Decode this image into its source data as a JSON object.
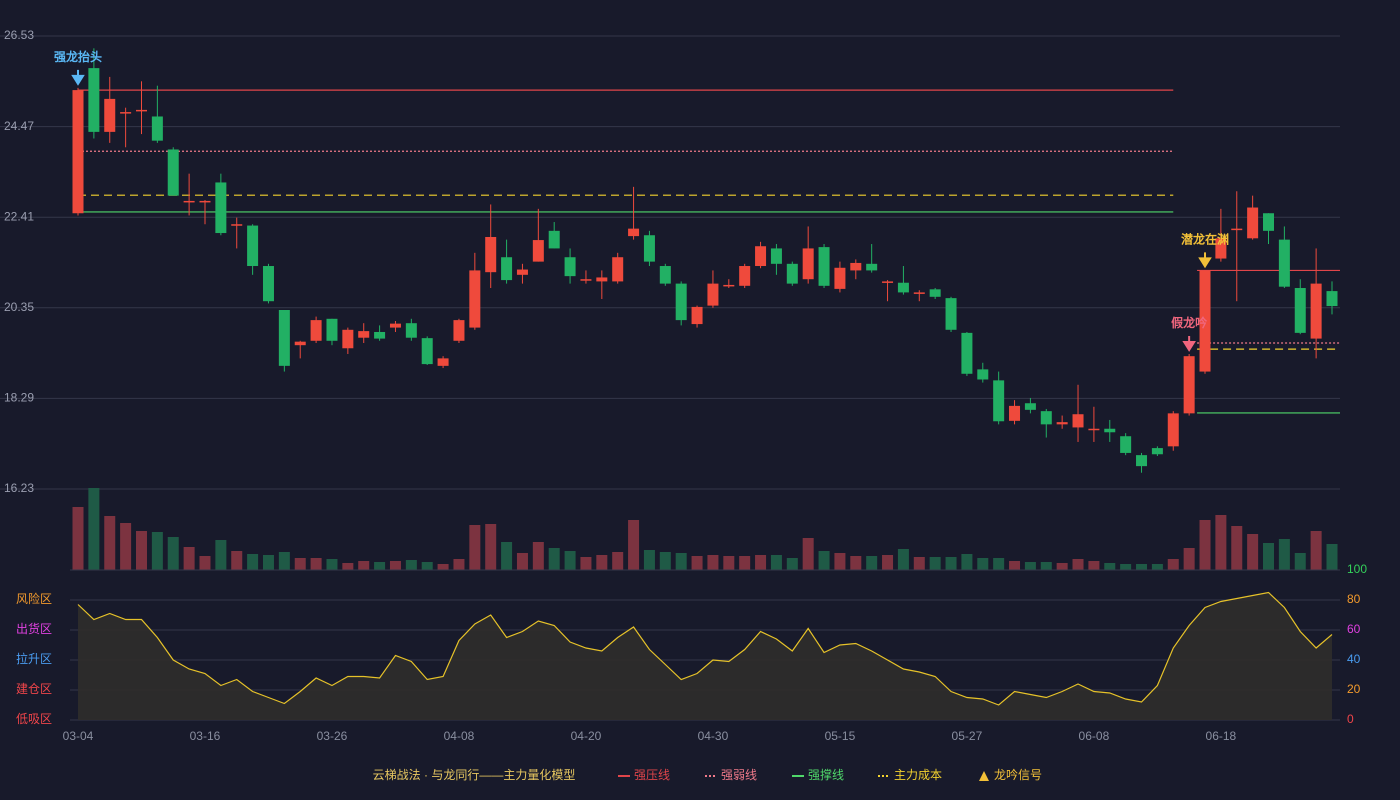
{
  "chart_data": [
    {
      "type": "candlestick",
      "categories": [
        "03-04",
        null,
        null,
        null,
        null,
        null,
        null,
        null,
        "03-16",
        null,
        null,
        null,
        null,
        null,
        null,
        null,
        "03-26",
        null,
        null,
        null,
        null,
        null,
        null,
        null,
        "04-08",
        null,
        null,
        null,
        null,
        null,
        null,
        null,
        "04-20",
        null,
        null,
        null,
        null,
        null,
        null,
        null,
        "04-30",
        null,
        null,
        null,
        null,
        null,
        null,
        null,
        "05-15",
        null,
        null,
        null,
        null,
        null,
        null,
        null,
        "05-27",
        null,
        null,
        null,
        null,
        null,
        null,
        null,
        "06-08",
        null,
        null,
        null,
        null,
        null,
        null,
        null,
        "06-18",
        null,
        null,
        null,
        null,
        null,
        null,
        null
      ],
      "open": [
        22.5,
        25.8,
        24.35,
        24.8,
        24.85,
        24.7,
        23.95,
        22.78,
        22.78,
        23.2,
        22.25,
        22.22,
        21.3,
        20.3,
        19.5,
        19.6,
        20.1,
        19.43,
        19.67,
        19.8,
        19.9,
        20.0,
        19.66,
        19.03,
        19.6,
        19.9,
        21.16,
        21.5,
        21.1,
        21.4,
        22.1,
        21.5,
        21.0,
        20.95,
        20.95,
        21.98,
        22.0,
        21.3,
        20.9,
        19.98,
        20.4,
        20.87,
        20.85,
        21.3,
        21.7,
        21.35,
        21.0,
        21.73,
        20.78,
        21.2,
        21.35,
        20.95,
        20.92,
        20.7,
        20.77,
        20.57,
        19.78,
        18.95,
        18.7,
        17.78,
        18.18,
        18.0,
        17.7,
        17.63,
        17.6,
        17.6,
        17.43,
        17.0,
        17.16,
        17.2,
        17.95,
        18.9,
        21.47,
        22.15,
        21.93,
        22.5,
        21.9,
        20.8,
        19.65,
        20.73
      ],
      "high": [
        25.35,
        26.25,
        25.6,
        24.9,
        25.5,
        25.4,
        24.0,
        23.4,
        22.8,
        23.4,
        22.4,
        22.25,
        21.35,
        20.3,
        19.6,
        20.15,
        20.1,
        19.9,
        20.0,
        19.95,
        20.05,
        20.1,
        19.7,
        19.25,
        20.1,
        21.6,
        22.7,
        21.9,
        21.35,
        22.6,
        22.3,
        21.7,
        21.2,
        21.2,
        21.6,
        23.1,
        22.1,
        21.35,
        20.95,
        20.4,
        21.2,
        21.0,
        21.35,
        21.85,
        21.8,
        21.4,
        22.2,
        21.8,
        21.4,
        21.45,
        21.8,
        20.98,
        21.3,
        20.75,
        20.8,
        20.6,
        19.8,
        19.1,
        18.9,
        18.25,
        18.3,
        18.05,
        17.9,
        18.6,
        18.1,
        17.8,
        17.5,
        17.05,
        17.2,
        18.0,
        19.3,
        21.2,
        22.6,
        23.0,
        22.9,
        22.5,
        22.2,
        21.0,
        21.7,
        20.95
      ],
      "low": [
        22.45,
        24.2,
        24.1,
        24.0,
        24.3,
        24.1,
        22.9,
        22.45,
        22.25,
        22.0,
        21.7,
        21.1,
        20.45,
        18.9,
        19.2,
        19.55,
        19.5,
        19.3,
        19.55,
        19.6,
        19.8,
        19.6,
        19.05,
        18.98,
        19.55,
        19.85,
        20.8,
        20.9,
        20.9,
        21.4,
        21.7,
        20.9,
        20.9,
        20.55,
        20.9,
        21.9,
        21.3,
        20.85,
        19.95,
        19.9,
        20.35,
        20.8,
        20.8,
        21.25,
        21.1,
        20.85,
        20.9,
        20.8,
        20.7,
        21.0,
        21.15,
        20.5,
        20.65,
        20.5,
        20.55,
        19.8,
        18.8,
        18.65,
        17.7,
        17.7,
        17.95,
        17.4,
        17.6,
        17.3,
        17.3,
        17.3,
        17.0,
        16.6,
        16.98,
        17.1,
        17.9,
        18.85,
        21.4,
        20.5,
        21.9,
        21.8,
        20.8,
        19.75,
        19.2,
        20.2
      ],
      "close": [
        25.3,
        24.35,
        25.1,
        24.8,
        24.85,
        24.15,
        22.9,
        22.78,
        22.78,
        22.05,
        22.25,
        21.3,
        20.5,
        19.03,
        19.58,
        20.07,
        19.6,
        19.85,
        19.82,
        19.65,
        19.99,
        19.67,
        19.07,
        19.2,
        20.07,
        21.2,
        21.96,
        20.98,
        21.22,
        21.89,
        21.7,
        21.07,
        21.0,
        21.04,
        21.5,
        22.15,
        21.4,
        20.9,
        20.07,
        20.37,
        20.9,
        20.87,
        21.3,
        21.75,
        21.35,
        20.9,
        21.7,
        20.85,
        21.26,
        21.37,
        21.2,
        20.95,
        20.7,
        20.7,
        20.6,
        19.85,
        18.85,
        18.72,
        17.77,
        18.12,
        18.03,
        17.7,
        17.75,
        17.93,
        17.6,
        17.52,
        17.05,
        16.75,
        17.02,
        17.95,
        19.25,
        21.2,
        21.93,
        22.15,
        22.63,
        22.1,
        20.83,
        19.78,
        20.9,
        20.39
      ],
      "up_color": "#ef4a3c",
      "down_color": "#22b064",
      "ylim": [
        16.23,
        26.53
      ],
      "yticks": [
        16.23,
        18.29,
        20.35,
        22.41,
        24.47,
        26.53
      ],
      "grid": true,
      "legend_title": "云梯战法 · 与龙同行——主力量化模型",
      "series": [
        {
          "name": "强压线",
          "color": "#e0454a",
          "style": "solid",
          "values": [
            25.3,
            25.3,
            25.3,
            25.3,
            25.3,
            25.3,
            25.3,
            25.3,
            25.3,
            25.3,
            25.3,
            25.3,
            25.3,
            25.3,
            25.3,
            25.3,
            25.3,
            25.3,
            25.3,
            25.3,
            25.3,
            25.3,
            25.3,
            25.3,
            25.3,
            25.3,
            25.3,
            25.3,
            25.3,
            25.3,
            25.3,
            25.3,
            25.3,
            25.3,
            25.3,
            25.3,
            25.3,
            25.3,
            25.3,
            25.3,
            25.3,
            25.3,
            25.3,
            25.3,
            25.3,
            25.3,
            25.3,
            25.3,
            25.3,
            25.3,
            25.3,
            25.3,
            25.3,
            25.3,
            25.3,
            25.3,
            25.3,
            25.3,
            25.3,
            25.3,
            25.3,
            25.3,
            25.3,
            25.3,
            25.3,
            25.3,
            25.3,
            25.3,
            25.3,
            25.3,
            null,
            21.2,
            21.2,
            21.2,
            21.2,
            21.2,
            21.2,
            21.2,
            21.2,
            21.2
          ]
        },
        {
          "name": "强弱线",
          "color": "#f07a8a",
          "style": "dotted",
          "values": [
            23.91,
            23.91,
            23.91,
            23.91,
            23.91,
            23.91,
            23.91,
            23.91,
            23.91,
            23.91,
            23.91,
            23.91,
            23.91,
            23.91,
            23.91,
            23.91,
            23.91,
            23.91,
            23.91,
            23.91,
            23.91,
            23.91,
            23.91,
            23.91,
            23.91,
            23.91,
            23.91,
            23.91,
            23.91,
            23.91,
            23.91,
            23.91,
            23.91,
            23.91,
            23.91,
            23.91,
            23.91,
            23.91,
            23.91,
            23.91,
            23.91,
            23.91,
            23.91,
            23.91,
            23.91,
            23.91,
            23.91,
            23.91,
            23.91,
            23.91,
            23.91,
            23.91,
            23.91,
            23.91,
            23.91,
            23.91,
            23.91,
            23.91,
            23.91,
            23.91,
            23.91,
            23.91,
            23.91,
            23.91,
            23.91,
            23.91,
            23.91,
            23.91,
            23.91,
            23.91,
            null,
            19.55,
            19.55,
            19.55,
            19.55,
            19.55,
            19.55,
            19.55,
            19.55,
            19.55
          ]
        },
        {
          "name": "强撑线",
          "color": "#4fd86a",
          "style": "solid",
          "values": [
            22.53,
            22.53,
            22.53,
            22.53,
            22.53,
            22.53,
            22.53,
            22.53,
            22.53,
            22.53,
            22.53,
            22.53,
            22.53,
            22.53,
            22.53,
            22.53,
            22.53,
            22.53,
            22.53,
            22.53,
            22.53,
            22.53,
            22.53,
            22.53,
            22.53,
            22.53,
            22.53,
            22.53,
            22.53,
            22.53,
            22.53,
            22.53,
            22.53,
            22.53,
            22.53,
            22.53,
            22.53,
            22.53,
            22.53,
            22.53,
            22.53,
            22.53,
            22.53,
            22.53,
            22.53,
            22.53,
            22.53,
            22.53,
            22.53,
            22.53,
            22.53,
            22.53,
            22.53,
            22.53,
            22.53,
            22.53,
            22.53,
            22.53,
            22.53,
            22.53,
            22.53,
            22.53,
            22.53,
            22.53,
            22.53,
            22.53,
            22.53,
            22.53,
            22.53,
            22.53,
            null,
            17.96,
            17.96,
            17.96,
            17.96,
            17.96,
            17.96,
            17.96,
            17.96,
            17.96
          ]
        },
        {
          "name": "主力成本",
          "color": "#f2d12e",
          "style": "dashed",
          "values": [
            22.91,
            22.91,
            22.91,
            22.91,
            22.91,
            22.91,
            22.91,
            22.91,
            22.91,
            22.91,
            22.91,
            22.91,
            22.91,
            22.91,
            22.91,
            22.91,
            22.91,
            22.91,
            22.91,
            22.91,
            22.91,
            22.91,
            22.91,
            22.91,
            22.91,
            22.91,
            22.91,
            22.91,
            22.91,
            22.91,
            22.91,
            22.91,
            22.91,
            22.91,
            22.91,
            22.91,
            22.91,
            22.91,
            22.91,
            22.91,
            22.91,
            22.91,
            22.91,
            22.91,
            22.91,
            22.91,
            22.91,
            22.91,
            22.91,
            22.91,
            22.91,
            22.91,
            22.91,
            22.91,
            22.91,
            22.91,
            22.91,
            22.91,
            22.91,
            22.91,
            22.91,
            22.91,
            22.91,
            22.91,
            22.91,
            22.91,
            22.91,
            22.91,
            22.91,
            22.91,
            null,
            19.41,
            19.41,
            19.41,
            19.41,
            19.41,
            19.41,
            19.41,
            19.41,
            19.41
          ]
        }
      ],
      "signal_name": "龙吟信号",
      "signal_color": "#f2c038",
      "annotations": [
        {
          "text": "强龙抬头",
          "candle": 0,
          "color": "#5ab8f5"
        },
        {
          "text": "假龙吟",
          "candle": 70,
          "color": "#f0667e"
        },
        {
          "text": "潜龙在渊",
          "candle": 71,
          "color": "#f2c038"
        }
      ]
    },
    {
      "type": "bar",
      "values": [
        63,
        82,
        54,
        47,
        39,
        38,
        33,
        23,
        14,
        30,
        19,
        16,
        15,
        18,
        12,
        12,
        11,
        7,
        9,
        8,
        9,
        10,
        8,
        6,
        11,
        45,
        46,
        28,
        17,
        28,
        22,
        19,
        13,
        15,
        18,
        50,
        20,
        18,
        17,
        14,
        15,
        14,
        14,
        15,
        15,
        12,
        32,
        19,
        17,
        14,
        14,
        15,
        21,
        13,
        13,
        13,
        16,
        12,
        12,
        9,
        8,
        8,
        7,
        11,
        9,
        7,
        6,
        6,
        6,
        11,
        22,
        50,
        55,
        44,
        36,
        27,
        31,
        17,
        39,
        26
      ],
      "up_color": "#7c3340",
      "down_color": "#1f5a46"
    },
    {
      "type": "area",
      "values": [
        77,
        67,
        71,
        67,
        67,
        55,
        40,
        34,
        31,
        23,
        27,
        19,
        15,
        11,
        19,
        28,
        23,
        29,
        29,
        28,
        43,
        39,
        27,
        29,
        53,
        64,
        70,
        55,
        59,
        66,
        63,
        52,
        48,
        46,
        55,
        62,
        47,
        37,
        27,
        31,
        40,
        39,
        47,
        59,
        54,
        46,
        61,
        45,
        50,
        51,
        46,
        40,
        34,
        32,
        29,
        19,
        15,
        14,
        10,
        19,
        17,
        15,
        19,
        24,
        19,
        18,
        14,
        12,
        23,
        48,
        63,
        75,
        79,
        81,
        83,
        85,
        75,
        59,
        48,
        57
      ],
      "color": "#e6c229",
      "fill": "#2f2d2b",
      "ylim": [
        0,
        100
      ],
      "yticks": [
        0,
        20,
        40,
        60,
        80,
        100
      ],
      "ytick_colors": [
        "#f0454a",
        "#f39a2c",
        "#4a9cf0",
        "#e040e0",
        "#f39a2c",
        "#33d05a"
      ],
      "zones": [
        {
          "value": 0,
          "label": "低吸区",
          "color": "#f0454a"
        },
        {
          "value": 20,
          "label": "建仓区",
          "color": "#f0454a"
        },
        {
          "value": 40,
          "label": "拉升区",
          "color": "#4a9cf0"
        },
        {
          "value": 60,
          "label": "出货区",
          "color": "#e040e0"
        },
        {
          "value": 80,
          "label": "风险区",
          "color": "#f39a2c"
        }
      ]
    }
  ]
}
